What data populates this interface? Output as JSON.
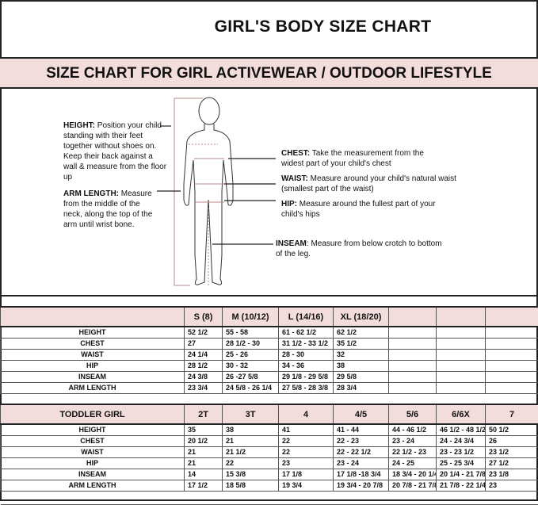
{
  "title": "GIRL'S BODY SIZE CHART",
  "subtitle": "SIZE CHART FOR GIRL ACTIVEWEAR / OUTDOOR LIFESTYLE",
  "accent_color": "#f3dcdc",
  "notes": {
    "height": {
      "label": "HEIGHT:",
      "text": "Position your child standing with their feet together without shoes on. Keep their back against a wall & measure from the floor up"
    },
    "arm_length": {
      "label": "ARM LENGTH:",
      "text": "Measure from the middle of the neck, along the top of the arm until wrist bone."
    },
    "chest": {
      "label": "CHEST:",
      "text": "Take the measurement from the widest part of your child's chest"
    },
    "waist": {
      "label": "WAIST:",
      "text": "Measure around your child's natural waist (smallest part of the waist)"
    },
    "hip": {
      "label": "HIP:",
      "text": "Measure around the fullest part of your child's hips"
    },
    "inseam": {
      "label": "INSEAM",
      "text": ": Measure from below crotch to bottom of the leg."
    }
  },
  "girl_table": {
    "header": [
      "",
      "S (8)",
      "M (10/12)",
      "L (14/16)",
      "XL (18/20)",
      "",
      "",
      ""
    ],
    "rows": [
      [
        "HEIGHT",
        "52 1/2",
        "55 - 58",
        "61 - 62 1/2",
        "62 1/2",
        "",
        "",
        ""
      ],
      [
        "CHEST",
        "27",
        "28 1/2 - 30",
        "31 1/2 - 33 1/2",
        "35 1/2",
        "",
        "",
        ""
      ],
      [
        "WAIST",
        "24 1/4",
        "25 - 26",
        "28 - 30",
        "32",
        "",
        "",
        ""
      ],
      [
        "HIP",
        "28 1/2",
        "30 - 32",
        "34 - 36",
        "38",
        "",
        "",
        ""
      ],
      [
        "INSEAM",
        "24 3/8",
        "26 -27 5/8",
        "29 1/8 - 29 5/8",
        "29 5/8",
        "",
        "",
        ""
      ],
      [
        "ARM LENGTH",
        "23 3/4",
        "24 5/8 - 26 1/4",
        "27 5/8 - 28 3/8",
        "28 3/4",
        "",
        "",
        ""
      ]
    ]
  },
  "toddler_table": {
    "header": [
      "TODDLER GIRL",
      "2T",
      "3T",
      "4",
      "4/5",
      "5/6",
      "6/6X",
      "7"
    ],
    "rows": [
      [
        "HEIGHT",
        "35",
        "38",
        "41",
        "41 - 44",
        "44 - 46 1/2",
        "46 1/2 - 48 1/2",
        "50 1/2"
      ],
      [
        "CHEST",
        "20 1/2",
        "21",
        "22",
        "22 - 23",
        "23 - 24",
        "24 - 24 3/4",
        "26"
      ],
      [
        "WAIST",
        "21",
        "21 1/2",
        "22",
        "22 - 22 1/2",
        "22 1/2 - 23",
        "23 - 23 1/2",
        "23 1/2"
      ],
      [
        "HIP",
        "21",
        "22",
        "23",
        "23 - 24",
        "24 - 25",
        "25 - 25 3/4",
        "27 1/2"
      ],
      [
        "INSEAM",
        "14",
        "15 3/8",
        "17 1/8",
        "17 1/8 -18 3/4",
        "18 3/4 - 20 1/4",
        "20 1/4 - 21 7/8",
        "23 1/8"
      ],
      [
        "ARM LENGTH",
        "17 1/2",
        "18 5/8",
        "19 3/4",
        "19 3/4 - 20 7/8",
        "20 7/8 - 21 7/8",
        "21 7/8 - 22 1/4",
        "23"
      ]
    ]
  }
}
